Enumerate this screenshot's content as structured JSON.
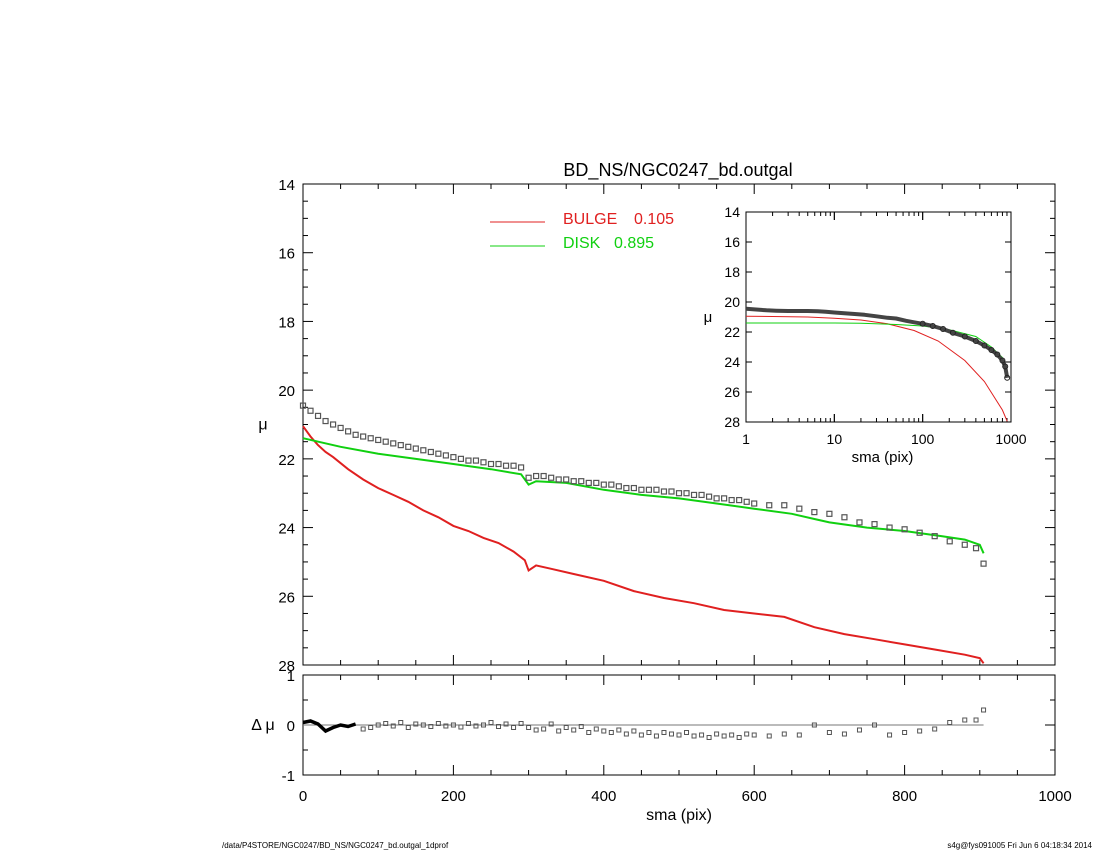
{
  "footer": {
    "path": "/data/P4STORE/NGC0247/BD_NS/NGC0247_bd.outgal_1dprof",
    "stamp": "s4g@fys091005  Fri Jun  6 04:18:34 2014"
  },
  "colors": {
    "bulge": "#e02020",
    "disk": "#10d010",
    "data": "#555555",
    "axis": "#000000"
  },
  "chart_data": [
    {
      "id": "main",
      "type": "line",
      "title": "BD_NS/NGC0247_bd.outgal",
      "xlabel": "",
      "ylabel": "μ",
      "xlim": [
        0,
        1000
      ],
      "ylim": [
        28,
        14
      ],
      "yticks": [
        14,
        16,
        18,
        20,
        22,
        24,
        26,
        28
      ],
      "legend": {
        "placement": "top-center",
        "entries": [
          {
            "label": "BULGE",
            "value": "0.105",
            "color": "#e02020"
          },
          {
            "label": "DISK",
            "value": "0.895",
            "color": "#10d010"
          }
        ]
      },
      "series": [
        {
          "name": "BULGE",
          "color": "#e02020",
          "x": [
            0,
            10,
            20,
            30,
            40,
            60,
            80,
            100,
            120,
            140,
            160,
            180,
            200,
            220,
            240,
            260,
            280,
            295,
            300,
            310,
            330,
            360,
            400,
            440,
            480,
            520,
            560,
            600,
            640,
            680,
            720,
            760,
            800,
            840,
            880,
            900,
            905
          ],
          "y": [
            21.05,
            21.35,
            21.6,
            21.8,
            21.95,
            22.3,
            22.6,
            22.85,
            23.05,
            23.25,
            23.5,
            23.7,
            23.95,
            24.1,
            24.3,
            24.45,
            24.7,
            24.95,
            25.25,
            25.1,
            25.2,
            25.35,
            25.55,
            25.85,
            26.05,
            26.2,
            26.4,
            26.5,
            26.6,
            26.9,
            27.1,
            27.25,
            27.4,
            27.55,
            27.7,
            27.8,
            27.95
          ]
        },
        {
          "name": "DISK",
          "color": "#10d010",
          "x": [
            0,
            50,
            100,
            150,
            200,
            250,
            290,
            300,
            310,
            350,
            400,
            450,
            500,
            550,
            600,
            650,
            680,
            700,
            750,
            800,
            850,
            880,
            900,
            905
          ],
          "y": [
            21.4,
            21.65,
            21.85,
            22.0,
            22.15,
            22.3,
            22.45,
            22.75,
            22.65,
            22.7,
            22.9,
            23.05,
            23.15,
            23.3,
            23.45,
            23.6,
            23.75,
            23.85,
            24.0,
            24.1,
            24.25,
            24.35,
            24.5,
            24.75
          ]
        }
      ],
      "observed": {
        "x": [
          0,
          10,
          20,
          30,
          40,
          50,
          60,
          70,
          80,
          90,
          100,
          110,
          120,
          130,
          140,
          150,
          160,
          170,
          180,
          190,
          200,
          210,
          220,
          230,
          240,
          250,
          260,
          270,
          280,
          290,
          300,
          310,
          320,
          330,
          340,
          350,
          360,
          370,
          380,
          390,
          400,
          410,
          420,
          430,
          440,
          450,
          460,
          470,
          480,
          490,
          500,
          510,
          520,
          530,
          540,
          550,
          560,
          570,
          580,
          590,
          600,
          620,
          640,
          660,
          680,
          700,
          720,
          740,
          760,
          780,
          800,
          820,
          840,
          860,
          880,
          895,
          905
        ],
        "y": [
          20.45,
          20.6,
          20.75,
          20.9,
          21.0,
          21.1,
          21.2,
          21.3,
          21.35,
          21.4,
          21.45,
          21.5,
          21.55,
          21.6,
          21.65,
          21.7,
          21.75,
          21.8,
          21.85,
          21.9,
          21.95,
          22.0,
          22.05,
          22.05,
          22.1,
          22.15,
          22.15,
          22.2,
          22.2,
          22.25,
          22.55,
          22.5,
          22.5,
          22.55,
          22.6,
          22.6,
          22.65,
          22.65,
          22.7,
          22.7,
          22.75,
          22.75,
          22.8,
          22.85,
          22.85,
          22.9,
          22.9,
          22.9,
          22.95,
          22.95,
          23.0,
          23.0,
          23.05,
          23.05,
          23.1,
          23.15,
          23.15,
          23.2,
          23.2,
          23.25,
          23.3,
          23.35,
          23.35,
          23.45,
          23.55,
          23.6,
          23.7,
          23.85,
          23.9,
          24.0,
          24.05,
          24.15,
          24.25,
          24.4,
          24.5,
          24.6,
          25.05
        ]
      }
    },
    {
      "id": "residual",
      "type": "scatter",
      "xlabel": "sma (pix)",
      "ylabel": "Δ μ",
      "xlim": [
        0,
        1000
      ],
      "ylim": [
        -1,
        1
      ],
      "xticks": [
        0,
        200,
        400,
        600,
        800,
        1000
      ],
      "yticks": [
        -1,
        0,
        1
      ],
      "zero_line": true,
      "x": [
        0,
        10,
        20,
        30,
        40,
        50,
        60,
        70,
        80,
        90,
        100,
        110,
        120,
        130,
        140,
        150,
        160,
        170,
        180,
        190,
        200,
        210,
        220,
        230,
        240,
        250,
        260,
        270,
        280,
        290,
        300,
        310,
        320,
        330,
        340,
        350,
        360,
        370,
        380,
        390,
        400,
        410,
        420,
        430,
        440,
        450,
        460,
        470,
        480,
        490,
        500,
        510,
        520,
        530,
        540,
        550,
        560,
        570,
        580,
        590,
        600,
        620,
        640,
        660,
        680,
        700,
        720,
        740,
        760,
        780,
        800,
        820,
        840,
        860,
        880,
        895,
        905
      ],
      "y": [
        0.05,
        0.08,
        0.02,
        -0.12,
        -0.05,
        0.0,
        -0.03,
        0.02,
        -0.08,
        -0.05,
        0.0,
        0.03,
        -0.02,
        0.05,
        -0.05,
        0.02,
        0.0,
        -0.03,
        0.03,
        -0.02,
        0.0,
        -0.04,
        0.03,
        -0.02,
        0.0,
        0.05,
        -0.03,
        0.02,
        -0.05,
        0.03,
        -0.05,
        -0.1,
        -0.08,
        0.02,
        -0.12,
        -0.05,
        -0.1,
        -0.03,
        -0.15,
        -0.08,
        -0.12,
        -0.15,
        -0.1,
        -0.18,
        -0.12,
        -0.2,
        -0.15,
        -0.22,
        -0.15,
        -0.18,
        -0.2,
        -0.15,
        -0.22,
        -0.2,
        -0.25,
        -0.18,
        -0.22,
        -0.2,
        -0.25,
        -0.18,
        -0.2,
        -0.22,
        -0.18,
        -0.2,
        0.0,
        -0.15,
        -0.18,
        -0.1,
        0.0,
        -0.2,
        -0.15,
        -0.12,
        -0.08,
        0.05,
        0.1,
        0.1,
        0.3
      ]
    },
    {
      "id": "inset",
      "type": "line",
      "xlabel": "sma (pix)",
      "ylabel": "μ",
      "xscale": "log",
      "xlim": [
        1,
        1000
      ],
      "ylim": [
        28,
        14
      ],
      "xticks": [
        1,
        10,
        100,
        1000
      ],
      "yticks": [
        14,
        16,
        18,
        20,
        22,
        24,
        26,
        28
      ],
      "series": [
        {
          "name": "BULGE",
          "color": "#e02020",
          "x": [
            1,
            2,
            5,
            10,
            20,
            40,
            80,
            150,
            300,
            500,
            800,
            905
          ],
          "y": [
            20.95,
            20.97,
            21.0,
            21.08,
            21.2,
            21.45,
            21.9,
            22.6,
            23.9,
            25.3,
            27.2,
            27.95
          ]
        },
        {
          "name": "DISK",
          "color": "#10d010",
          "x": [
            1,
            5,
            10,
            20,
            50,
            100,
            200,
            400,
            600,
            800,
            905
          ],
          "y": [
            21.4,
            21.4,
            21.4,
            21.42,
            21.5,
            21.6,
            21.85,
            22.3,
            23.0,
            23.7,
            24.75
          ]
        }
      ],
      "observed": {
        "x": [
          1,
          1.3,
          1.7,
          2.2,
          3,
          4,
          5,
          6.5,
          8,
          10,
          13,
          17,
          22,
          30,
          40,
          50,
          65,
          80,
          100,
          130,
          170,
          220,
          300,
          400,
          500,
          600,
          700,
          800,
          860,
          905
        ],
        "y": [
          20.45,
          20.5,
          20.55,
          20.58,
          20.6,
          20.6,
          20.6,
          20.62,
          20.65,
          20.7,
          20.75,
          20.8,
          20.85,
          20.95,
          21.05,
          21.1,
          21.25,
          21.35,
          21.45,
          21.6,
          21.8,
          22.05,
          22.3,
          22.6,
          22.9,
          23.2,
          23.5,
          23.9,
          24.3,
          25.05
        ]
      }
    }
  ]
}
